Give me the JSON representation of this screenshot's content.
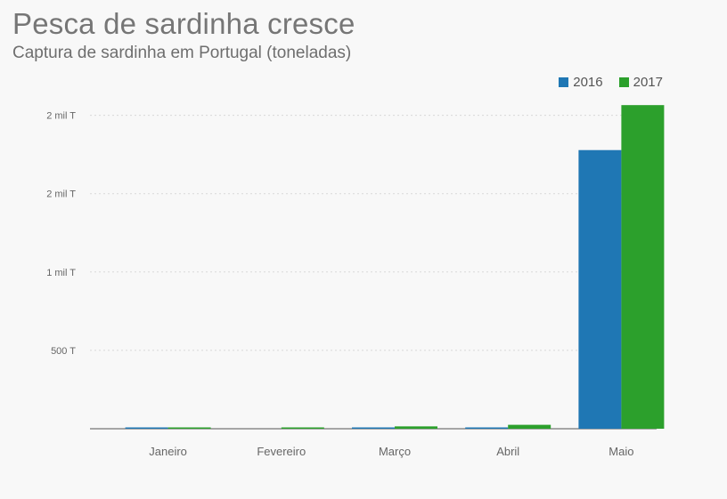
{
  "title": "Pesca de sardinha cresce",
  "subtitle": "Captura de sardinha em Portugal (toneladas)",
  "legend": [
    {
      "name": "2016",
      "color": "#1f77b4"
    },
    {
      "name": "2017",
      "color": "#2ca02c"
    }
  ],
  "chart_data": {
    "type": "bar",
    "title": "Pesca de sardinha cresce",
    "subtitle": "Captura de sardinha em Portugal (toneladas)",
    "xlabel": "",
    "ylabel": "",
    "categories": [
      "Janeiro",
      "Fevereiro",
      "Março",
      "Abril",
      "Maio"
    ],
    "series": [
      {
        "name": "2016",
        "color": "#1f77b4",
        "values": [
          3,
          0,
          2,
          5,
          1778
        ]
      },
      {
        "name": "2017",
        "color": "#2ca02c",
        "values": [
          8,
          3,
          15,
          25,
          2065
        ]
      }
    ],
    "ylim": [
      0,
      2100
    ],
    "yticks": [
      {
        "value": 500,
        "label": "500 T"
      },
      {
        "value": 1000,
        "label": "1 mil T"
      },
      {
        "value": 1500,
        "label": "2 mil T"
      },
      {
        "value": 2000,
        "label": "2 mil T"
      }
    ],
    "grid": true,
    "legend_position": "top-right"
  }
}
